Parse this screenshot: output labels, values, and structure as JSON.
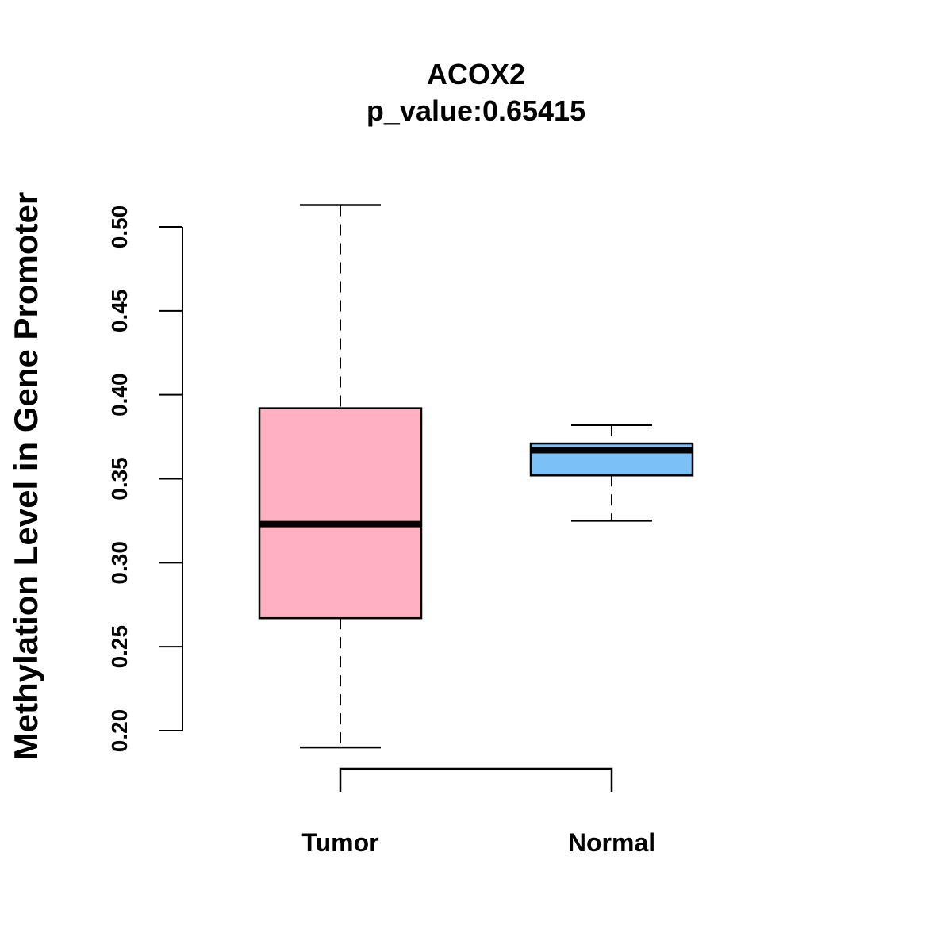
{
  "chart_data": {
    "type": "boxplot",
    "title": "ACOX2",
    "subtitle": "p_value:0.65415",
    "xlabel": "",
    "ylabel": "Methylation Level in Gene Promoter",
    "ylim": [
      0.2,
      0.5
    ],
    "yticks": [
      0.2,
      0.25,
      0.3,
      0.35,
      0.4,
      0.45,
      0.5
    ],
    "ytick_labels": [
      "0.20",
      "0.25",
      "0.30",
      "0.35",
      "0.40",
      "0.45",
      "0.50"
    ],
    "categories": [
      "Tumor",
      "Normal"
    ],
    "series": [
      {
        "name": "Tumor",
        "color": "#FFB0C1",
        "whisker_low": 0.19,
        "q1": 0.267,
        "median": 0.323,
        "q3": 0.392,
        "whisker_high": 0.513
      },
      {
        "name": "Normal",
        "color": "#7CC0F8",
        "whisker_low": 0.325,
        "q1": 0.352,
        "median": 0.367,
        "q3": 0.371,
        "whisker_high": 0.382
      }
    ],
    "grid": false,
    "bracket": "Tumor-Normal"
  }
}
